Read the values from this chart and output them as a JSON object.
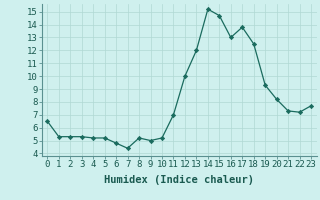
{
  "x": [
    0,
    1,
    2,
    3,
    4,
    5,
    6,
    7,
    8,
    9,
    10,
    11,
    12,
    13,
    14,
    15,
    16,
    17,
    18,
    19,
    20,
    21,
    22,
    23
  ],
  "y": [
    6.5,
    5.3,
    5.3,
    5.3,
    5.2,
    5.2,
    4.8,
    4.4,
    5.2,
    5.0,
    5.2,
    7.0,
    10.0,
    12.0,
    15.2,
    14.7,
    13.0,
    13.8,
    12.5,
    9.3,
    8.2,
    7.3,
    7.2,
    7.7
  ],
  "line_color": "#1a6b5e",
  "marker": "D",
  "marker_size": 2.2,
  "bg_color": "#cff0ee",
  "grid_color": "#b0d8d4",
  "xlabel": "Humidex (Indice chaleur)",
  "ylim": [
    3.8,
    15.6
  ],
  "xlim": [
    -0.5,
    23.5
  ],
  "yticks": [
    4,
    5,
    6,
    7,
    8,
    9,
    10,
    11,
    12,
    13,
    14,
    15
  ],
  "xticks": [
    0,
    1,
    2,
    3,
    4,
    5,
    6,
    7,
    8,
    9,
    10,
    11,
    12,
    13,
    14,
    15,
    16,
    17,
    18,
    19,
    20,
    21,
    22,
    23
  ],
  "xtick_labels": [
    "0",
    "1",
    "2",
    "3",
    "4",
    "5",
    "6",
    "7",
    "8",
    "9",
    "10",
    "11",
    "12",
    "13",
    "14",
    "15",
    "16",
    "17",
    "18",
    "19",
    "20",
    "21",
    "22",
    "23"
  ],
  "xlabel_fontsize": 7.5,
  "tick_fontsize": 6.5
}
